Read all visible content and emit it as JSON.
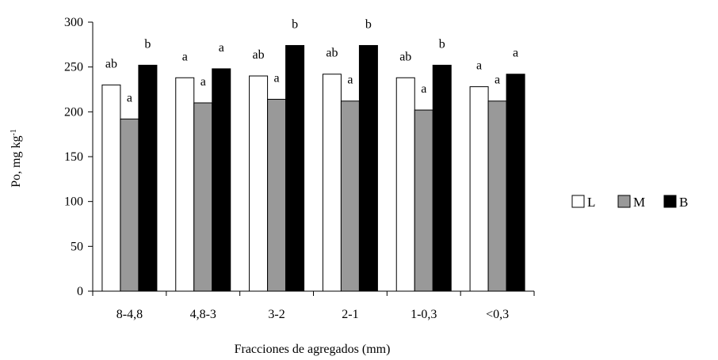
{
  "chart_data": {
    "type": "bar",
    "xlabel": "Fracciones de agregados (mm)",
    "ylabel": "Po, mg kg",
    "ylabel_superscript": "-1",
    "ylim": [
      0,
      300
    ],
    "yticks": [
      0,
      50,
      100,
      150,
      200,
      250,
      300
    ],
    "grid": false,
    "legend_position": "right",
    "categories": [
      "8-4,8",
      "4,8-3",
      "3-2",
      "2-1",
      "1-0,3",
      "<0,3"
    ],
    "series": [
      {
        "name": "L",
        "color": "#ffffff",
        "values": [
          230,
          238,
          240,
          242,
          238,
          228
        ],
        "labels": [
          "ab",
          "a",
          "ab",
          "ab",
          "ab",
          "a"
        ]
      },
      {
        "name": "M",
        "color": "#999999",
        "values": [
          192,
          210,
          214,
          212,
          202,
          212
        ],
        "labels": [
          "a",
          "a",
          "a",
          "a",
          "a",
          "a"
        ]
      },
      {
        "name": "B",
        "color": "#000000",
        "values": [
          252,
          248,
          274,
          274,
          252,
          242
        ],
        "labels": [
          "b",
          "a",
          "b",
          "b",
          "b",
          "a"
        ]
      }
    ]
  }
}
